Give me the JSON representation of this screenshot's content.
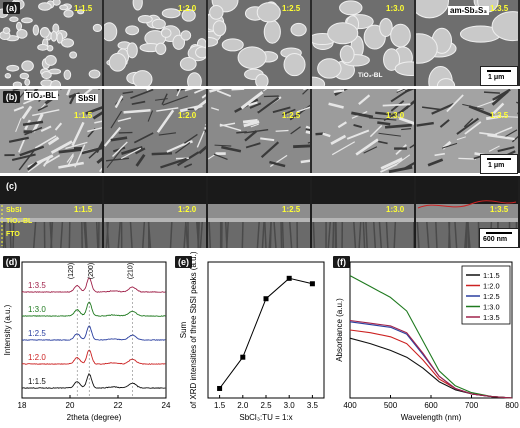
{
  "panels": {
    "a": {
      "tag": "(a)",
      "ratios": [
        "1:1.5",
        "1:2.0",
        "1:2.5",
        "1:3.0",
        "1:3.5"
      ],
      "annotations": {
        "am": "am-Sb₂S₃",
        "tio2": "TiO₂-BL"
      },
      "scalebar": "1 μm"
    },
    "b": {
      "tag": "(b)",
      "ratios": [
        "1:1.5",
        "1:2.0",
        "1:2.5",
        "1:3.0",
        "1:3.5"
      ],
      "annotations": {
        "tio2": "TiO₂-BL",
        "sbsi": "SbSI"
      },
      "scalebar": "1 μm"
    },
    "c": {
      "tag": "(c)",
      "ratios": [
        "1:1.5",
        "1:2.0",
        "1:2.5",
        "1:3.0",
        "1:3.5"
      ],
      "layers": [
        "SbSI",
        "TiO₂-BL",
        "FTO"
      ],
      "scalebar": "600 nm"
    },
    "d": {
      "tag": "(d)"
    },
    "e": {
      "tag": "(e)"
    },
    "f": {
      "tag": "(f)"
    }
  },
  "chart_data": [
    {
      "type": "line",
      "panel": "d",
      "xlabel": "2theta (degree)",
      "ylabel": "Intensity (a.u.)",
      "xlim": [
        18,
        24
      ],
      "xticks": [
        18,
        20,
        22,
        24
      ],
      "peak_labels": [
        {
          "label": "(120)",
          "x": 20.3
        },
        {
          "label": "(200)",
          "x": 20.8
        },
        {
          "label": "(210)",
          "x": 22.6
        }
      ],
      "series": [
        {
          "name": "1:3.5",
          "color": "#a0224a",
          "offset": 4
        },
        {
          "name": "1:3.0",
          "color": "#1f7a1f",
          "offset": 3
        },
        {
          "name": "1:2.5",
          "color": "#2a3fa0",
          "offset": 2
        },
        {
          "name": "1:2.0",
          "color": "#cc2222",
          "offset": 1
        },
        {
          "name": "1:1.5",
          "color": "#111111",
          "offset": 0
        }
      ]
    },
    {
      "type": "line",
      "panel": "e",
      "xlabel": "SbCl₃:TU = 1:x",
      "ylabel": "Sum of XRD intensities of three SbSI peaks (a.u.)",
      "xlim": [
        1.25,
        3.75
      ],
      "xticks": [
        1.5,
        2.0,
        2.5,
        3.0,
        3.5
      ],
      "ylim": [
        0,
        1
      ],
      "x": [
        1.5,
        2.0,
        2.5,
        3.0,
        3.5
      ],
      "y": [
        0.07,
        0.3,
        0.73,
        0.88,
        0.84
      ]
    },
    {
      "type": "line",
      "panel": "f",
      "xlabel": "Wavelength (nm)",
      "ylabel": "Absorbance (a.u.)",
      "xlim": [
        400,
        800
      ],
      "xticks": [
        400,
        500,
        600,
        700,
        800
      ],
      "ylim": [
        0,
        1
      ],
      "legend": "top-right",
      "series": [
        {
          "name": "1:1.5",
          "color": "#111111",
          "x": [
            400,
            450,
            500,
            540,
            580,
            620,
            660,
            700,
            750,
            800
          ],
          "y": [
            0.44,
            0.4,
            0.35,
            0.3,
            0.22,
            0.12,
            0.06,
            0.03,
            0.01,
            0.0
          ]
        },
        {
          "name": "1:2.0",
          "color": "#cc2222",
          "x": [
            400,
            450,
            500,
            540,
            580,
            620,
            660,
            700,
            750,
            800
          ],
          "y": [
            0.5,
            0.48,
            0.45,
            0.4,
            0.28,
            0.14,
            0.07,
            0.03,
            0.01,
            0.0
          ]
        },
        {
          "name": "1:2.5",
          "color": "#2a3fa0",
          "x": [
            400,
            450,
            500,
            540,
            580,
            620,
            660,
            700,
            750,
            800
          ],
          "y": [
            0.56,
            0.54,
            0.52,
            0.47,
            0.32,
            0.16,
            0.07,
            0.03,
            0.01,
            0.0
          ]
        },
        {
          "name": "1:3.0",
          "color": "#1f7a1f",
          "x": [
            400,
            450,
            500,
            540,
            580,
            620,
            660,
            700,
            750,
            800
          ],
          "y": [
            0.9,
            0.82,
            0.74,
            0.64,
            0.42,
            0.2,
            0.09,
            0.04,
            0.01,
            0.0
          ]
        },
        {
          "name": "1:3.5",
          "color": "#a0224a",
          "x": [
            400,
            450,
            500,
            540,
            580,
            620,
            660,
            700,
            750,
            800
          ],
          "y": [
            0.57,
            0.55,
            0.53,
            0.48,
            0.33,
            0.16,
            0.07,
            0.03,
            0.01,
            0.0
          ]
        }
      ]
    }
  ]
}
